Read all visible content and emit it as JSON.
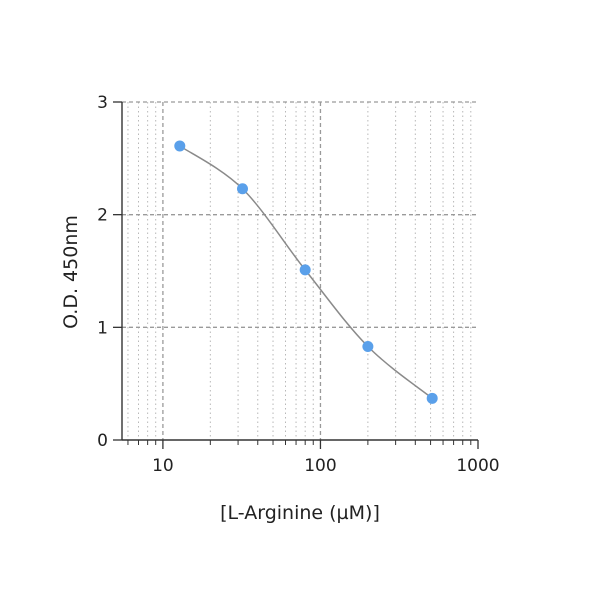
{
  "chart_data": {
    "type": "scatter",
    "xlabel": "[L-Arginine (µM)]",
    "ylabel": "O.D. 450nm",
    "x_scale": "log",
    "xlim": [
      5.5,
      1000
    ],
    "ylim": [
      0,
      3
    ],
    "x_major_ticks": [
      10,
      100,
      1000
    ],
    "x_tick_labels": [
      "10",
      "100",
      "1000"
    ],
    "y_ticks": [
      0,
      1,
      2,
      3
    ],
    "y_tick_labels": [
      "0",
      "1",
      "2",
      "3"
    ],
    "grid": true,
    "series": [
      {
        "x": [
          12.8,
          32,
          80,
          200,
          512
        ],
        "y": [
          2.61,
          2.23,
          1.51,
          0.83,
          0.37
        ],
        "color": "#5aa0ea",
        "fit_curve": true,
        "fit_color": "#8a8a8a"
      }
    ]
  }
}
